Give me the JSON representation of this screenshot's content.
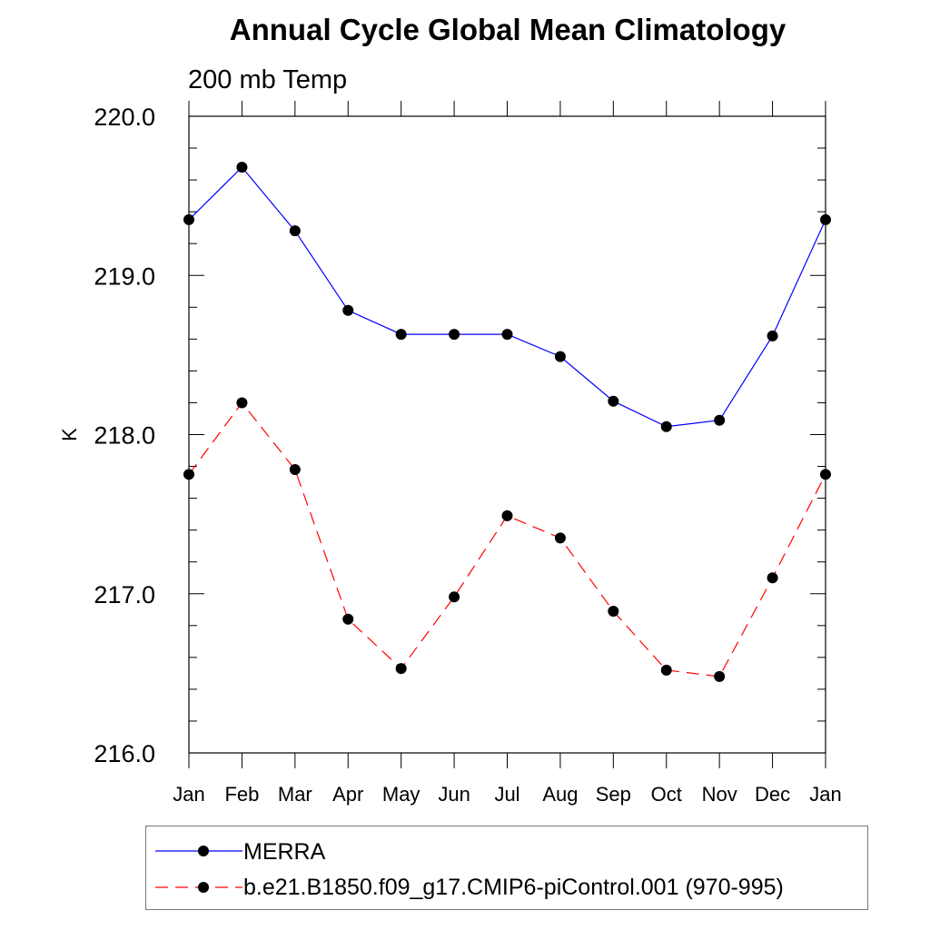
{
  "chart_data": {
    "type": "line",
    "title": "Annual Cycle Global Mean Climatology",
    "subtitle": "200 mb Temp",
    "xlabel": "",
    "ylabel": "K",
    "categories": [
      "Jan",
      "Feb",
      "Mar",
      "Apr",
      "May",
      "Jun",
      "Jul",
      "Aug",
      "Sep",
      "Oct",
      "Nov",
      "Dec",
      "Jan"
    ],
    "ylim": [
      216.0,
      220.0
    ],
    "yticks": [
      216.0,
      217.0,
      218.0,
      219.0,
      220.0
    ],
    "ytick_labels": [
      "216.0",
      "217.0",
      "218.0",
      "219.0",
      "220.0"
    ],
    "legend_position": "bottom",
    "series": [
      {
        "name": "MERRA",
        "color": "#0000ff",
        "dashed": false,
        "values": [
          219.35,
          219.68,
          219.28,
          218.78,
          218.63,
          218.63,
          218.63,
          218.49,
          218.21,
          218.05,
          218.09,
          218.62,
          219.35
        ]
      },
      {
        "name": "b.e21.B1850.f09_g17.CMIP6-piControl.001 (970-995)",
        "color": "#ff0000",
        "dashed": true,
        "values": [
          217.75,
          218.2,
          217.78,
          216.84,
          216.53,
          216.98,
          217.49,
          217.35,
          216.89,
          216.52,
          216.48,
          217.1,
          217.75
        ]
      }
    ]
  }
}
